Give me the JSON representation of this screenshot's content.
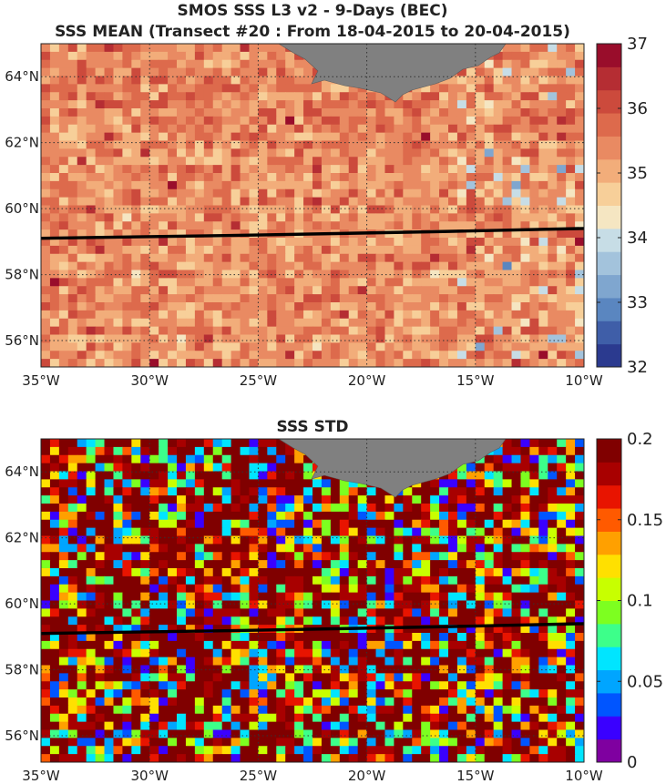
{
  "figure": {
    "title_line1": "SMOS SSS L3 v2 - 9-Days (BEC)",
    "title_line2": "SSS MEAN (Transect #20 : From 18-04-2015 to 20-04-2015)",
    "panel2_title": "SSS STD"
  },
  "map": {
    "lon_range": [
      -35,
      -10
    ],
    "lat_range": [
      55.2,
      65.0
    ],
    "lon_ticks": [
      "35°W",
      "30°W",
      "25°W",
      "20°W",
      "15°W",
      "10°W"
    ],
    "lat_ticks": [
      "56°N",
      "58°N",
      "60°N",
      "62°N",
      "64°N"
    ],
    "grid_style": "dotted",
    "land_color": "#808080",
    "land_region": "Iceland (top center)",
    "transect": {
      "color": "#000000",
      "points": [
        [
          -35,
          59.1
        ],
        [
          -25,
          59.2
        ],
        [
          -17,
          59.3
        ],
        [
          -10,
          59.4
        ]
      ]
    }
  },
  "colorbars": {
    "mean": {
      "min": 32,
      "max": 37,
      "ticks": [
        "32",
        "33",
        "34",
        "35",
        "36",
        "37"
      ],
      "colormap": "diverging blue-white-red",
      "colors": [
        "#2b3a8f",
        "#3f5ea8",
        "#5a86c0",
        "#7fa6cf",
        "#a3c3dc",
        "#c7dde6",
        "#f5e6c2",
        "#f7cf99",
        "#f2ad7a",
        "#e98a62",
        "#dd6a4c",
        "#cc4a3c",
        "#b52d33",
        "#990d2b"
      ]
    },
    "std": {
      "min": 0,
      "max": 0.2,
      "ticks": [
        "0",
        "0.05",
        "0.1",
        "0.15",
        "0.2"
      ],
      "colormap": "jet",
      "colors": [
        "#7f00a0",
        "#3a00ff",
        "#0055ff",
        "#00a5ff",
        "#00e5ff",
        "#3dff8a",
        "#7dff20",
        "#c8ff00",
        "#ffe000",
        "#ffa000",
        "#ff5a00",
        "#e81400",
        "#a80000",
        "#800000"
      ]
    }
  }
}
